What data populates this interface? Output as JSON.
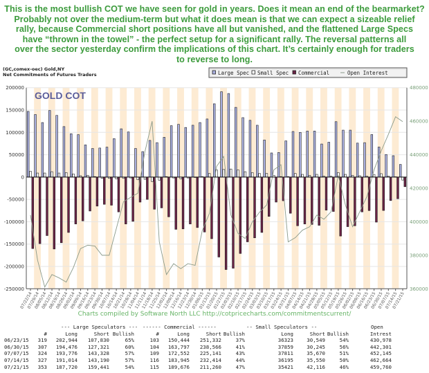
{
  "headline": [
    "This is the most bullish COT we have seen for gold in years. Does it mean an end of the bearmarket?",
    "Probably not over the medium-term but what it does mean is that we can expect a sizeable relief",
    "rally, because Commercial short positions have all but vanished, and the flattened Large Specs",
    "have “thrown in the towel” - the perfect setup for a significant rally. The reversal patterns all",
    "over the sector yesterday confirm the implications of this chart. It’s certainly enough for traders",
    "to reverse to long."
  ],
  "chart_data": {
    "type": "bar",
    "subtitle_1": "(GC,comex-oec) Gold,NY",
    "subtitle_2": "Net Commitments of Futures Traders",
    "title": "GOLD COT",
    "ylim": [
      -250000,
      200000
    ],
    "y_ticks": [
      200000,
      150000,
      100000,
      50000,
      0,
      -50000,
      -100000,
      -150000,
      -200000,
      -250000
    ],
    "y2lim": [
      360000,
      480000
    ],
    "y2_ticks": [
      480000,
      460000,
      440000,
      420000,
      400000,
      380000,
      360000
    ],
    "grid": true,
    "legend_placement": "top-right",
    "categories": [
      "07/22/14",
      "07/29/14",
      "08/05/14",
      "08/12/14",
      "08/19/14",
      "08/26/14",
      "09/02/14",
      "09/09/14",
      "09/16/14",
      "09/23/14",
      "09/30/14",
      "10/07/14",
      "10/14/14",
      "10/21/14",
      "10/28/14",
      "11/04/14",
      "11/11/14",
      "11/18/14",
      "11/25/14",
      "12/02/14",
      "12/09/14",
      "12/16/14",
      "12/23/14",
      "12/30/14",
      "01/06/15",
      "01/13/15",
      "01/20/15",
      "01/27/15",
      "02/03/15",
      "02/10/15",
      "02/17/15",
      "02/24/15",
      "03/03/15",
      "03/10/15",
      "03/17/15",
      "03/24/15",
      "03/31/15",
      "04/07/15",
      "04/14/15",
      "04/21/15",
      "04/28/15",
      "05/05/15",
      "05/12/15",
      "05/19/15",
      "05/26/15",
      "06/02/15",
      "06/09/15",
      "06/16/15",
      "06/23/15",
      "06/30/15",
      "07/07/15",
      "07/14/15",
      "07/21/15"
    ],
    "series": [
      {
        "name": "Large Spec",
        "color": "#aab0e0",
        "axis": "left",
        "kind": "bar",
        "values": [
          147000,
          140000,
          122000,
          149000,
          138000,
          113000,
          97000,
          95000,
          72000,
          64000,
          65000,
          67000,
          86000,
          108000,
          101000,
          64000,
          57000,
          82000,
          77000,
          89000,
          115000,
          118000,
          111000,
          116000,
          122000,
          130000,
          164000,
          191000,
          187000,
          156000,
          133000,
          127000,
          116000,
          83000,
          54000,
          55000,
          81000,
          102000,
          100000,
          103000,
          103000,
          74000,
          78000,
          124000,
          105000,
          105000,
          76000,
          77000,
          95114,
          67155,
          50448,
          47824,
          28279
        ]
      },
      {
        "name": "Small Spec",
        "color": "#ffffff",
        "axis": "left",
        "kind": "bar",
        "values": [
          13000,
          9000,
          9000,
          12000,
          9000,
          10000,
          7000,
          3000,
          4000,
          1000,
          -3000,
          -3000,
          -4000,
          -3000,
          -2000,
          -6000,
          -5000,
          -10000,
          -7000,
          1000,
          -2000,
          -4000,
          -2000,
          -1000,
          1000,
          8000,
          16000,
          17000,
          18000,
          16000,
          12000,
          10000,
          8000,
          8000,
          4000,
          1000,
          1000,
          8000,
          6000,
          4000,
          6000,
          2000,
          2000,
          10000,
          6000,
          4000,
          3000,
          2000,
          5774,
          7614,
          2141,
          645,
          -6695
        ]
      },
      {
        "name": "Commercial",
        "color": "#6b2346",
        "axis": "left",
        "kind": "bar",
        "values": [
          -160000,
          -149000,
          -131000,
          -161000,
          -147000,
          -124000,
          -105000,
          -98000,
          -76000,
          -65000,
          -61000,
          -63000,
          -78000,
          -105000,
          -99000,
          -56000,
          -50000,
          -72000,
          -69000,
          -89000,
          -117000,
          -116000,
          -105000,
          -113000,
          -123000,
          -138000,
          -179000,
          -207000,
          -204000,
          -171000,
          -145000,
          -136000,
          -124000,
          -88000,
          -56000,
          -53000,
          -81000,
          -109000,
          -105000,
          -106000,
          -108000,
          -74000,
          -77000,
          -132000,
          -111000,
          -109000,
          -78000,
          -75000,
          -100888,
          -74769,
          -52589,
          -48469,
          -21584
        ]
      },
      {
        "name": "Open Interest",
        "color": "#8a9a8a",
        "axis": "right",
        "kind": "line",
        "values": [
          404000,
          377000,
          361000,
          368500,
          366500,
          364000,
          372700,
          384000,
          386000,
          385500,
          380000,
          380000,
          396000,
          412000,
          414600,
          417000,
          442000,
          460000,
          388000,
          368500,
          375000,
          372000,
          375000,
          374000,
          394700,
          405000,
          433000,
          439000,
          404000,
          393000,
          390000,
          400000,
          405700,
          410000,
          431000,
          434000,
          388000,
          390500,
          395000,
          397000,
          404000,
          401500,
          406000,
          427700,
          410000,
          397000,
          406000,
          415000,
          430978,
          442301,
          452145,
          462664,
          459760
        ]
      }
    ]
  },
  "credit": "Charts compiled by Software North LLC  http://cotpricecharts.com/commitmentscurrent/",
  "table": {
    "group_headers": [
      "--- Large Speculators ---",
      "------ Commercial ------",
      "-- Small Speculators --",
      "Open"
    ],
    "columns": [
      "#",
      "Long",
      "Short",
      "Bullish",
      "#",
      "Long",
      "Short",
      "Bullish",
      "Long",
      "Short",
      "Bullish",
      "Intrest"
    ],
    "rows": [
      [
        "06/23/15",
        "319",
        "202,944",
        "107,830",
        "65%",
        "103",
        "150,444",
        "251,332",
        "37%",
        "36323",
        "30,549",
        "54%",
        "430,978"
      ],
      [
        "06/30/15",
        "307",
        "194,476",
        "127,321",
        "60%",
        "104",
        "163,797",
        "238,566",
        "41%",
        "37859",
        "30,245",
        "56%",
        "442,301"
      ],
      [
        "07/07/15",
        "324",
        "193,776",
        "143,328",
        "57%",
        "109",
        "172,552",
        "225,141",
        "43%",
        "37811",
        "35,670",
        "51%",
        "452,145"
      ],
      [
        "07/14/15",
        "327",
        "191,014",
        "143,190",
        "57%",
        "116",
        "183,945",
        "232,414",
        "44%",
        "36195",
        "35,550",
        "50%",
        "462,664"
      ],
      [
        "07/21/15",
        "353",
        "187,720",
        "159,441",
        "54%",
        "115",
        "189,676",
        "211,260",
        "47%",
        "35421",
        "42,116",
        "46%",
        "459,760"
      ]
    ]
  }
}
